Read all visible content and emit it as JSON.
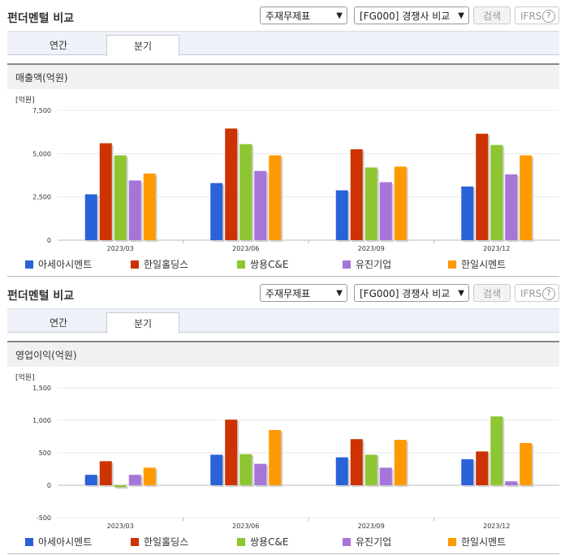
{
  "sections": [
    {
      "title": "펀더멘털 비교",
      "select1": "주재무제표",
      "select2": "[FG000] 경쟁사 비교",
      "search_btn": "검색",
      "ifrs_btn": "IFRS",
      "help": "?",
      "tabs": [
        "연간",
        "분기"
      ],
      "panel_title": "매출액(억원)"
    },
    {
      "title": "펀더멘털 비교",
      "select1": "주재무제표",
      "select2": "[FG000] 경쟁사 비교",
      "search_btn": "검색",
      "ifrs_btn": "IFRS",
      "help": "?",
      "tabs": [
        "연간",
        "분기"
      ],
      "panel_title": "영업이익(억원)"
    }
  ],
  "colors": [
    "#2a62d8",
    "#cc3300",
    "#8ec632",
    "#a675d8",
    "#ff9900"
  ],
  "chart_data": [
    {
      "type": "bar",
      "unit_label": "[억원]",
      "categories": [
        "2023/03",
        "2023/06",
        "2023/09",
        "2023/12"
      ],
      "ylim": [
        0,
        7500
      ],
      "yticks": [
        "7,500",
        "5,000",
        "2,500",
        "0"
      ],
      "ytick_values": [
        7500,
        5000,
        2500,
        0
      ],
      "series": [
        {
          "name": "아세아시멘트",
          "values": [
            2650,
            3300,
            2880,
            3100
          ]
        },
        {
          "name": "한일홀딩스",
          "values": [
            5600,
            6450,
            5250,
            6150
          ]
        },
        {
          "name": "쌍용C&E",
          "values": [
            4900,
            5550,
            4200,
            5500
          ]
        },
        {
          "name": "유진기업",
          "values": [
            3450,
            4000,
            3350,
            3800
          ]
        },
        {
          "name": "한일시멘트",
          "values": [
            3850,
            4900,
            4250,
            4900
          ]
        }
      ]
    },
    {
      "type": "bar",
      "unit_label": "[억원]",
      "categories": [
        "2023/03",
        "2023/06",
        "2023/09",
        "2023/12"
      ],
      "ylim": [
        -500,
        1500
      ],
      "yticks": [
        "1,500",
        "1,000",
        "500",
        "0",
        "-500"
      ],
      "ytick_values": [
        1500,
        1000,
        500,
        0,
        -500
      ],
      "series": [
        {
          "name": "아세아시멘트",
          "values": [
            160,
            470,
            430,
            400
          ]
        },
        {
          "name": "한일홀딩스",
          "values": [
            370,
            1010,
            710,
            520
          ]
        },
        {
          "name": "쌍용C&E",
          "values": [
            -30,
            480,
            470,
            1060
          ]
        },
        {
          "name": "유진기업",
          "values": [
            160,
            330,
            270,
            60
          ]
        },
        {
          "name": "한일시멘트",
          "values": [
            270,
            850,
            700,
            650
          ]
        }
      ]
    }
  ]
}
